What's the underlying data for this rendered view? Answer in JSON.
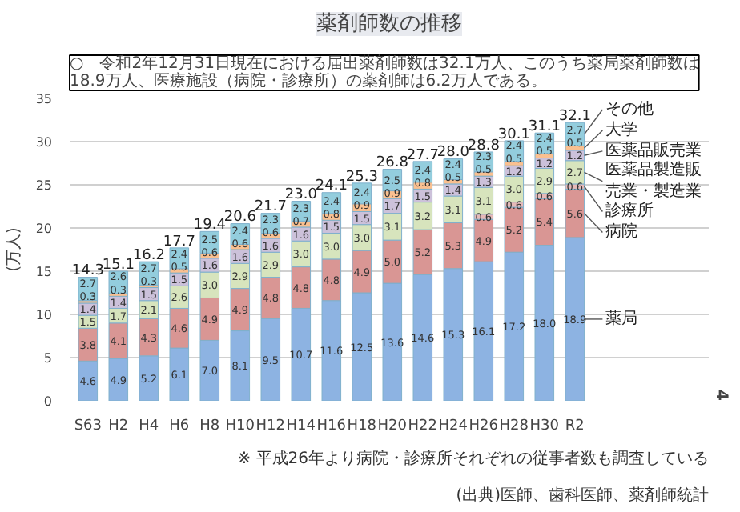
{
  "chart_data": {
    "type": "bar",
    "stacked": true,
    "title": "薬剤師数の推移",
    "subtitle": "○　令和2年12月31日現在における届出薬剤師数は32.1万人、このうち薬局薬剤師数は18.9万人、医療施設（病院・診療所）の薬剤師は6.2万人である。",
    "ylabel": "(万人)",
    "categories": [
      "S63",
      "H2",
      "H4",
      "H6",
      "H8",
      "H10",
      "H12",
      "H14",
      "H16",
      "H18",
      "H20",
      "H22",
      "H24",
      "H26",
      "H28",
      "H30",
      "R2"
    ],
    "series": [
      {
        "name": "薬局",
        "color": "#8db3e2",
        "values": [
          4.6,
          4.9,
          5.2,
          6.1,
          7.0,
          8.1,
          9.5,
          10.7,
          11.6,
          12.5,
          13.6,
          14.6,
          15.3,
          16.1,
          17.2,
          18.0,
          18.9
        ],
        "value_labels": [
          "4.6",
          "4.9",
          "5.2",
          "6.1",
          "7.0",
          "8.1",
          "9.5",
          "10.7",
          "11.6",
          "12.5",
          "13.6",
          "14.6",
          "15.3",
          "16.1",
          "17.2",
          "18.0",
          "18.9"
        ]
      },
      {
        "name": "病院",
        "color": "#d99694",
        "values": [
          3.8,
          4.1,
          4.3,
          4.6,
          4.9,
          4.9,
          4.8,
          4.8,
          4.8,
          4.9,
          5.0,
          5.2,
          5.3,
          4.9,
          5.2,
          5.4,
          5.6
        ],
        "value_labels": [
          "3.8",
          "4.1",
          "4.3",
          "4.6",
          "4.9",
          "4.9",
          "4.8",
          "4.8",
          "4.8",
          "4.9",
          "5.0",
          "5.2",
          "5.3",
          "4.9",
          "5.2",
          "5.4",
          "5.6"
        ]
      },
      {
        "name": "診療所",
        "color": "#e6b9b8",
        "values": [
          null,
          null,
          null,
          null,
          null,
          null,
          null,
          null,
          null,
          null,
          null,
          null,
          null,
          0.6,
          0.6,
          0.6,
          0.6
        ],
        "value_labels": [
          null,
          null,
          null,
          null,
          null,
          null,
          null,
          null,
          null,
          null,
          null,
          null,
          null,
          "0.6",
          "0.6",
          "0.6",
          "0.6"
        ]
      },
      {
        "name": "医薬品製造販売業・製造業",
        "color": "#d7e4bd",
        "values": [
          1.5,
          1.7,
          2.1,
          2.6,
          3.0,
          2.9,
          2.9,
          3.0,
          3.0,
          3.0,
          3.1,
          3.2,
          3.1,
          3.1,
          3.0,
          2.9,
          2.7
        ],
        "value_labels": [
          "1.5",
          "1.7",
          "2.1",
          "2.6",
          "3.0",
          "2.9",
          "2.9",
          "3.0",
          "3.0",
          "3.0",
          "3.1",
          "3.2",
          "3.1",
          "3.1",
          "3.0",
          "2.9",
          "2.7"
        ]
      },
      {
        "name": "医薬品販売業",
        "color": "#ccc1da",
        "values": [
          1.4,
          1.4,
          1.5,
          1.5,
          1.6,
          1.6,
          1.6,
          1.6,
          1.5,
          1.5,
          1.7,
          1.5,
          1.4,
          1.3,
          1.2,
          1.2,
          1.2
        ],
        "value_labels": [
          "1.4",
          "1.4",
          "1.5",
          "1.5",
          "1.6",
          "1.6",
          "1.6",
          "1.6",
          "1.5",
          "1.5",
          "1.7",
          "1.5",
          "1.4",
          "1.3",
          "1.2",
          "1.2",
          "1.2"
        ]
      },
      {
        "name": "大学",
        "color": "#fac090",
        "values": [
          0.3,
          0.3,
          0.3,
          0.5,
          0.6,
          0.6,
          0.6,
          0.7,
          0.8,
          0.9,
          0.9,
          0.8,
          0.5,
          0.5,
          0.5,
          0.5,
          0.5
        ],
        "value_labels": [
          "0.3",
          "0.3",
          "0.3",
          "0.5",
          "0.6",
          "0.6",
          "0.6",
          "0.7",
          "0.8",
          "0.9",
          "0.9",
          "0.8",
          "0.5",
          "0.5",
          "0.5",
          "0.5",
          "0.5"
        ]
      },
      {
        "name": "その他",
        "color": "#93cddd",
        "values": [
          2.7,
          2.6,
          2.7,
          2.4,
          2.5,
          2.4,
          2.3,
          2.3,
          2.4,
          2.4,
          2.5,
          2.4,
          2.4,
          2.3,
          2.4,
          2.4,
          2.7
        ],
        "value_labels": [
          "2.7",
          "2.6",
          "2.7",
          "2.4",
          "2.5",
          "2.4",
          "2.3",
          "2.3",
          "2.4",
          "2.4",
          "2.5",
          "2.4",
          "2.4",
          "2.3",
          "2.4",
          "2.4",
          "2.7"
        ]
      }
    ],
    "totals": [
      "14.3",
      "15.1",
      "16.2",
      "17.7",
      "19.4",
      "20.6",
      "21.7",
      "23.0",
      "24.1",
      "25.3",
      "26.8",
      "27.7",
      "28.0",
      "28.8",
      "30.1",
      "31.1",
      "32.1"
    ],
    "ylim": [
      0,
      35
    ],
    "yticks": [
      0,
      5,
      10,
      15,
      20,
      25,
      30,
      35
    ],
    "grid": "y",
    "legend": "right",
    "annotations": [
      "(出典)医師、歯科医師、薬剤師統計",
      "※ 平成26年より病院・診療所それぞれの従事者数も調査している",
      "4"
    ]
  }
}
